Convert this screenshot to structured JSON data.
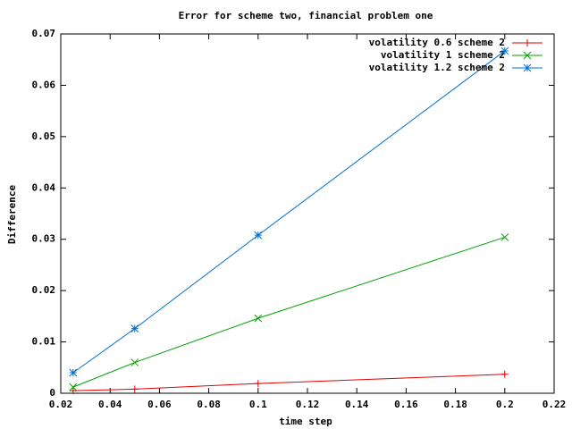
{
  "chart_data": {
    "type": "line",
    "title": "Error for scheme two, financial problem one",
    "xlabel": "time step",
    "ylabel": "Difference",
    "x": [
      0.025,
      0.05,
      0.1,
      0.2
    ],
    "series": [
      {
        "name": "volatility 0.6 scheme 2",
        "color": "#e00000",
        "marker": "plus",
        "values": [
          0.0005,
          0.0008,
          0.0019,
          0.0037
        ]
      },
      {
        "name": "volatility 1 scheme 2",
        "color": "#00a000",
        "marker": "cross",
        "values": [
          0.0012,
          0.006,
          0.0146,
          0.0304
        ]
      },
      {
        "name": "volatility 1.2 scheme 2",
        "color": "#0070d0",
        "marker": "star",
        "values": [
          0.004,
          0.0126,
          0.0308,
          0.0667
        ]
      }
    ],
    "xlim": [
      0.02,
      0.22
    ],
    "xticks": [
      0.02,
      0.04,
      0.06,
      0.08,
      0.1,
      0.12,
      0.14,
      0.16,
      0.18,
      0.2,
      0.22
    ],
    "ylim": [
      0,
      0.07
    ],
    "yticks": [
      0,
      0.01,
      0.02,
      0.03,
      0.04,
      0.05,
      0.06,
      0.07
    ],
    "legend": "top-right",
    "grid": false
  }
}
